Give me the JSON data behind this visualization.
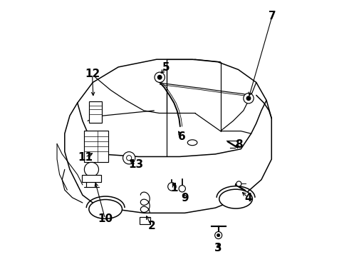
{
  "bg_color": "#ffffff",
  "line_color": "#000000",
  "fig_width": 4.9,
  "fig_height": 3.6,
  "dpi": 100,
  "font_size": 11,
  "font_weight": "bold",
  "label_data": {
    "1": {
      "lbl": [
        0.5,
        0.268
      ],
      "comp": [
        0.49,
        0.295
      ]
    },
    "2": {
      "lbl": [
        0.41,
        0.118
      ],
      "comp": [
        0.385,
        0.168
      ]
    },
    "3": {
      "lbl": [
        0.672,
        0.032
      ],
      "comp": [
        0.672,
        0.062
      ]
    },
    "4": {
      "lbl": [
        0.79,
        0.228
      ],
      "comp": [
        0.758,
        0.258
      ]
    },
    "5": {
      "lbl": [
        0.468,
        0.738
      ],
      "comp": [
        0.44,
        0.708
      ]
    },
    "6": {
      "lbl": [
        0.528,
        0.468
      ],
      "comp": [
        0.51,
        0.498
      ]
    },
    "7": {
      "lbl": [
        0.882,
        0.938
      ],
      "comp": [
        0.79,
        0.618
      ]
    },
    "8": {
      "lbl": [
        0.752,
        0.438
      ],
      "comp": [
        0.73,
        0.428
      ]
    },
    "9": {
      "lbl": [
        0.542,
        0.228
      ],
      "comp": [
        0.532,
        0.255
      ]
    },
    "10": {
      "lbl": [
        0.228,
        0.148
      ],
      "comp": [
        0.188,
        0.298
      ]
    },
    "11": {
      "lbl": [
        0.15,
        0.388
      ],
      "comp": [
        0.188,
        0.408
      ]
    },
    "12": {
      "lbl": [
        0.178,
        0.712
      ],
      "comp": [
        0.182,
        0.618
      ]
    },
    "13": {
      "lbl": [
        0.348,
        0.358
      ],
      "comp": [
        0.318,
        0.382
      ]
    }
  }
}
